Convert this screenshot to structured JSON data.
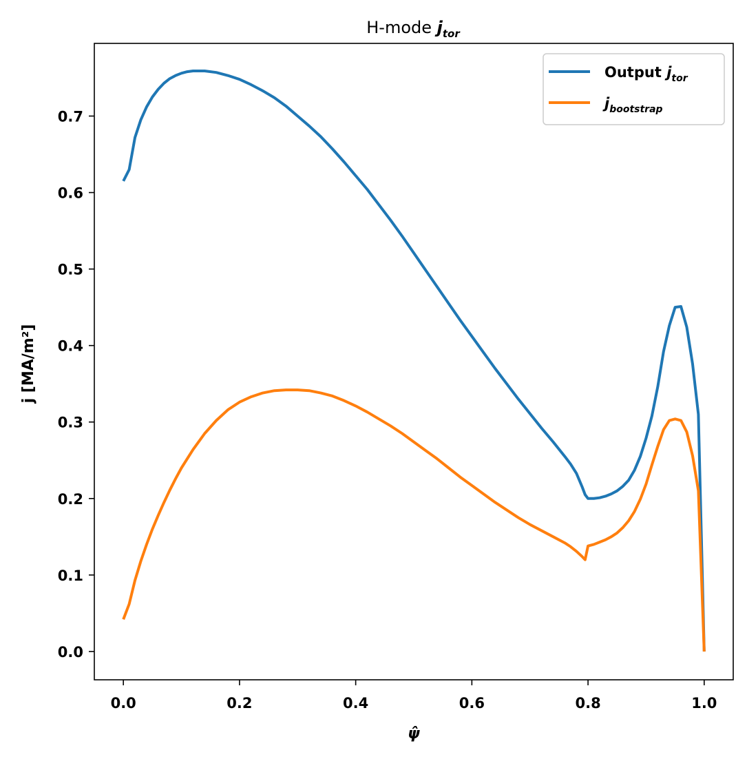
{
  "chart_data": {
    "type": "line",
    "title": {
      "prefix": "H-mode ",
      "math_main": "j",
      "math_sub": "tor"
    },
    "xlabel": "ψ̂",
    "ylabel": "j [MA/m²]",
    "xlim": [
      -0.05,
      1.05
    ],
    "ylim": [
      -0.037,
      0.795
    ],
    "xticks": [
      0.0,
      0.2,
      0.4,
      0.6,
      0.8,
      1.0
    ],
    "xtick_labels": [
      "0.0",
      "0.2",
      "0.4",
      "0.6",
      "0.8",
      "1.0"
    ],
    "yticks": [
      0.0,
      0.1,
      0.2,
      0.3,
      0.4,
      0.5,
      0.6,
      0.7
    ],
    "ytick_labels": [
      "0.0",
      "0.1",
      "0.2",
      "0.3",
      "0.4",
      "0.5",
      "0.6",
      "0.7"
    ],
    "grid": false,
    "legend_position": "top-right",
    "series": [
      {
        "name": "Output j_tor",
        "legend_plain": "Output ",
        "legend_math_main": "j",
        "legend_math_sub": "tor",
        "color": "#1f77b4",
        "points": [
          [
            0.0,
            0.615
          ],
          [
            0.01,
            0.63
          ],
          [
            0.02,
            0.672
          ],
          [
            0.03,
            0.695
          ],
          [
            0.04,
            0.712
          ],
          [
            0.05,
            0.725
          ],
          [
            0.06,
            0.735
          ],
          [
            0.07,
            0.743
          ],
          [
            0.08,
            0.749
          ],
          [
            0.09,
            0.753
          ],
          [
            0.1,
            0.756
          ],
          [
            0.11,
            0.758
          ],
          [
            0.12,
            0.759
          ],
          [
            0.13,
            0.759
          ],
          [
            0.14,
            0.759
          ],
          [
            0.16,
            0.757
          ],
          [
            0.18,
            0.753
          ],
          [
            0.2,
            0.748
          ],
          [
            0.22,
            0.741
          ],
          [
            0.24,
            0.733
          ],
          [
            0.26,
            0.724
          ],
          [
            0.28,
            0.713
          ],
          [
            0.3,
            0.7
          ],
          [
            0.32,
            0.687
          ],
          [
            0.34,
            0.673
          ],
          [
            0.36,
            0.657
          ],
          [
            0.38,
            0.64
          ],
          [
            0.4,
            0.622
          ],
          [
            0.42,
            0.604
          ],
          [
            0.44,
            0.584
          ],
          [
            0.46,
            0.564
          ],
          [
            0.48,
            0.543
          ],
          [
            0.5,
            0.521
          ],
          [
            0.52,
            0.499
          ],
          [
            0.54,
            0.477
          ],
          [
            0.56,
            0.455
          ],
          [
            0.58,
            0.433
          ],
          [
            0.6,
            0.412
          ],
          [
            0.62,
            0.391
          ],
          [
            0.64,
            0.37
          ],
          [
            0.66,
            0.35
          ],
          [
            0.68,
            0.33
          ],
          [
            0.7,
            0.311
          ],
          [
            0.72,
            0.292
          ],
          [
            0.74,
            0.274
          ],
          [
            0.76,
            0.255
          ],
          [
            0.77,
            0.245
          ],
          [
            0.78,
            0.233
          ],
          [
            0.79,
            0.215
          ],
          [
            0.795,
            0.205
          ],
          [
            0.8,
            0.2
          ],
          [
            0.81,
            0.2
          ],
          [
            0.82,
            0.201
          ],
          [
            0.83,
            0.203
          ],
          [
            0.84,
            0.206
          ],
          [
            0.85,
            0.21
          ],
          [
            0.86,
            0.216
          ],
          [
            0.87,
            0.224
          ],
          [
            0.88,
            0.237
          ],
          [
            0.89,
            0.255
          ],
          [
            0.9,
            0.279
          ],
          [
            0.91,
            0.308
          ],
          [
            0.92,
            0.346
          ],
          [
            0.93,
            0.392
          ],
          [
            0.94,
            0.426
          ],
          [
            0.95,
            0.45
          ],
          [
            0.96,
            0.451
          ],
          [
            0.97,
            0.424
          ],
          [
            0.98,
            0.376
          ],
          [
            0.99,
            0.31
          ],
          [
            1.0,
            0.0
          ]
        ]
      },
      {
        "name": "j_bootstrap",
        "legend_plain": "",
        "legend_math_main": "j",
        "legend_math_sub": "bootstrap",
        "color": "#ff7f0e",
        "points": [
          [
            0.0,
            0.042
          ],
          [
            0.01,
            0.062
          ],
          [
            0.02,
            0.093
          ],
          [
            0.03,
            0.118
          ],
          [
            0.04,
            0.14
          ],
          [
            0.05,
            0.16
          ],
          [
            0.06,
            0.178
          ],
          [
            0.07,
            0.195
          ],
          [
            0.08,
            0.211
          ],
          [
            0.09,
            0.226
          ],
          [
            0.1,
            0.24
          ],
          [
            0.12,
            0.264
          ],
          [
            0.14,
            0.285
          ],
          [
            0.16,
            0.302
          ],
          [
            0.18,
            0.316
          ],
          [
            0.2,
            0.326
          ],
          [
            0.22,
            0.333
          ],
          [
            0.24,
            0.338
          ],
          [
            0.26,
            0.341
          ],
          [
            0.28,
            0.342
          ],
          [
            0.3,
            0.342
          ],
          [
            0.32,
            0.341
          ],
          [
            0.34,
            0.338
          ],
          [
            0.36,
            0.334
          ],
          [
            0.38,
            0.328
          ],
          [
            0.4,
            0.321
          ],
          [
            0.42,
            0.313
          ],
          [
            0.44,
            0.304
          ],
          [
            0.46,
            0.295
          ],
          [
            0.48,
            0.285
          ],
          [
            0.5,
            0.274
          ],
          [
            0.52,
            0.263
          ],
          [
            0.54,
            0.252
          ],
          [
            0.56,
            0.24
          ],
          [
            0.58,
            0.228
          ],
          [
            0.6,
            0.217
          ],
          [
            0.62,
            0.206
          ],
          [
            0.64,
            0.195
          ],
          [
            0.66,
            0.185
          ],
          [
            0.68,
            0.175
          ],
          [
            0.7,
            0.166
          ],
          [
            0.72,
            0.158
          ],
          [
            0.74,
            0.15
          ],
          [
            0.76,
            0.142
          ],
          [
            0.77,
            0.137
          ],
          [
            0.78,
            0.131
          ],
          [
            0.79,
            0.124
          ],
          [
            0.795,
            0.12
          ],
          [
            0.8,
            0.138
          ],
          [
            0.81,
            0.14
          ],
          [
            0.82,
            0.143
          ],
          [
            0.83,
            0.146
          ],
          [
            0.84,
            0.15
          ],
          [
            0.85,
            0.155
          ],
          [
            0.86,
            0.162
          ],
          [
            0.87,
            0.171
          ],
          [
            0.88,
            0.183
          ],
          [
            0.89,
            0.199
          ],
          [
            0.9,
            0.219
          ],
          [
            0.91,
            0.244
          ],
          [
            0.92,
            0.268
          ],
          [
            0.93,
            0.29
          ],
          [
            0.94,
            0.302
          ],
          [
            0.95,
            0.304
          ],
          [
            0.96,
            0.302
          ],
          [
            0.97,
            0.287
          ],
          [
            0.98,
            0.256
          ],
          [
            0.99,
            0.21
          ],
          [
            1.0,
            0.0
          ]
        ]
      }
    ]
  }
}
